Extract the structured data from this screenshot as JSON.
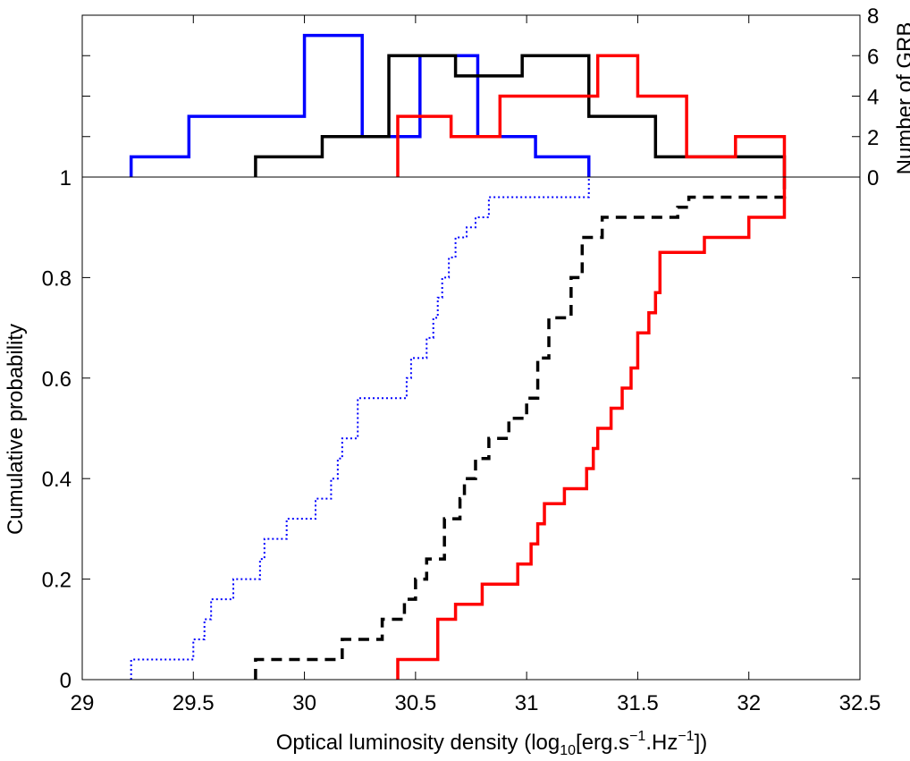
{
  "chart_data": {
    "type": "line",
    "xlabel_main": "Optical luminosity density (log",
    "xlabel_sub": "10",
    "xlabel_unit_start": "[erg.s",
    "xlabel_sup1": "−1",
    "xlabel_unit_mid": ".Hz",
    "xlabel_sup2": "−1",
    "xlabel_end": "])",
    "ylabel": "Cumulative probability",
    "ylabel_right": "Number of GRB",
    "xlim": [
      29,
      32.5
    ],
    "ylim": [
      0,
      1
    ],
    "hist_ylim": [
      0,
      8
    ],
    "x_ticks": [
      "29",
      "29.5",
      "30",
      "30.5",
      "31",
      "31.5",
      "32",
      "32.5"
    ],
    "x_tick_values": [
      29,
      29.5,
      30,
      30.5,
      31,
      31.5,
      32,
      32.5
    ],
    "y_ticks": [
      "0",
      "0.2",
      "0.4",
      "0.6",
      "0.8",
      "1"
    ],
    "y_tick_values": [
      0,
      0.2,
      0.4,
      0.6,
      0.8,
      1
    ],
    "right_ticks": [
      "0",
      "2",
      "4",
      "6",
      "8"
    ],
    "right_tick_values": [
      0,
      2,
      4,
      6,
      8
    ],
    "histograms": [
      {
        "name": "blue sample",
        "color": "#0000ff",
        "edges": [
          29.22,
          29.48,
          29.74,
          30.0,
          30.26,
          30.52,
          30.78,
          31.04,
          31.28
        ],
        "counts": [
          1,
          3,
          3,
          7,
          2,
          6,
          2,
          1
        ]
      },
      {
        "name": "black sample",
        "color": "#000000",
        "edges": [
          29.78,
          30.08,
          30.38,
          30.68,
          30.98,
          31.28,
          31.58,
          31.88,
          32.16
        ],
        "counts": [
          1,
          2,
          6,
          5,
          6,
          3,
          1,
          1
        ]
      },
      {
        "name": "red sample",
        "color": "#ff0000",
        "edges": [
          30.42,
          30.66,
          30.88,
          31.1,
          31.32,
          31.5,
          31.72,
          31.94,
          32.16
        ],
        "counts": [
          3,
          2,
          4,
          4,
          6,
          4,
          1,
          2
        ]
      }
    ],
    "cdfs": [
      {
        "name": "blue sample",
        "color": "#0000ff",
        "style": "dotted",
        "x": [
          29.22,
          29.5,
          29.55,
          29.58,
          29.68,
          29.8,
          29.82,
          29.92,
          30.05,
          30.12,
          30.15,
          30.17,
          30.24,
          30.46,
          30.48,
          30.55,
          30.58,
          30.6,
          30.62,
          30.65,
          30.68,
          30.73,
          30.77,
          30.83,
          31.28
        ],
        "y": [
          0.04,
          0.08,
          0.12,
          0.16,
          0.2,
          0.24,
          0.28,
          0.32,
          0.36,
          0.4,
          0.44,
          0.48,
          0.56,
          0.6,
          0.64,
          0.68,
          0.72,
          0.76,
          0.8,
          0.84,
          0.88,
          0.9,
          0.92,
          0.96,
          1.0
        ]
      },
      {
        "name": "black sample",
        "color": "#000000",
        "style": "dashed",
        "x": [
          29.78,
          30.17,
          30.35,
          30.45,
          30.5,
          30.55,
          30.63,
          30.7,
          30.72,
          30.77,
          30.83,
          30.92,
          31.0,
          31.05,
          31.1,
          31.2,
          31.25,
          31.34,
          31.68,
          31.73,
          32.16
        ],
        "y": [
          0.04,
          0.08,
          0.12,
          0.16,
          0.2,
          0.24,
          0.32,
          0.36,
          0.4,
          0.44,
          0.48,
          0.52,
          0.56,
          0.64,
          0.72,
          0.8,
          0.88,
          0.92,
          0.94,
          0.96,
          1.0
        ]
      },
      {
        "name": "red sample",
        "color": "#ff0000",
        "style": "solid",
        "x": [
          30.42,
          30.6,
          30.68,
          30.8,
          30.96,
          31.02,
          31.05,
          31.08,
          31.17,
          31.27,
          31.3,
          31.32,
          31.38,
          31.43,
          31.47,
          31.5,
          31.55,
          31.58,
          31.6,
          31.8,
          32.0,
          32.16
        ],
        "y": [
          0.04,
          0.12,
          0.15,
          0.19,
          0.23,
          0.27,
          0.31,
          0.35,
          0.38,
          0.42,
          0.46,
          0.5,
          0.54,
          0.58,
          0.62,
          0.69,
          0.73,
          0.77,
          0.85,
          0.88,
          0.92,
          1.0
        ]
      }
    ]
  }
}
